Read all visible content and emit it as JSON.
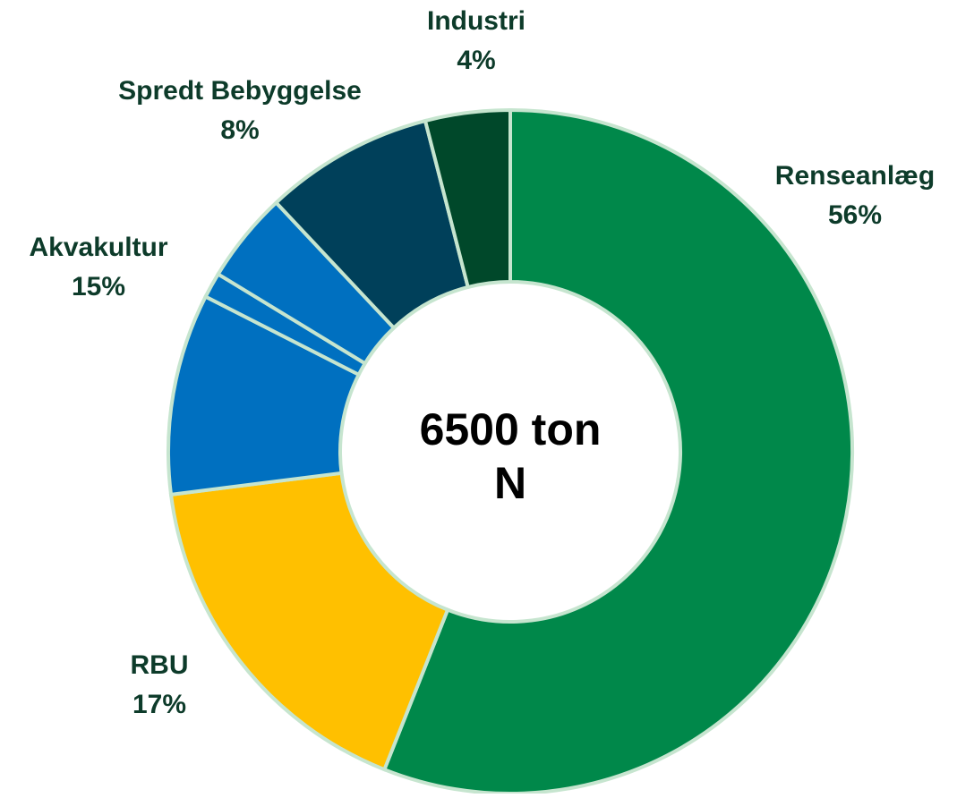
{
  "chart_data": {
    "type": "donut",
    "center_label": "6500 ton N",
    "categories": [
      "Renseanlæg",
      "RBU",
      "Akvakultur",
      "Spredt Bebyggelse",
      "Industri"
    ],
    "values": [
      56,
      17,
      15,
      8,
      4
    ],
    "value_labels": [
      "56%",
      "17%",
      "15%",
      "8%",
      "4%"
    ],
    "parts": [
      null,
      null,
      [
        9.5,
        1.2,
        4.3
      ],
      null,
      null
    ],
    "colors": [
      "#00884a",
      "#ffc000",
      "#0070c0",
      "#00405a",
      "#00482a"
    ]
  }
}
